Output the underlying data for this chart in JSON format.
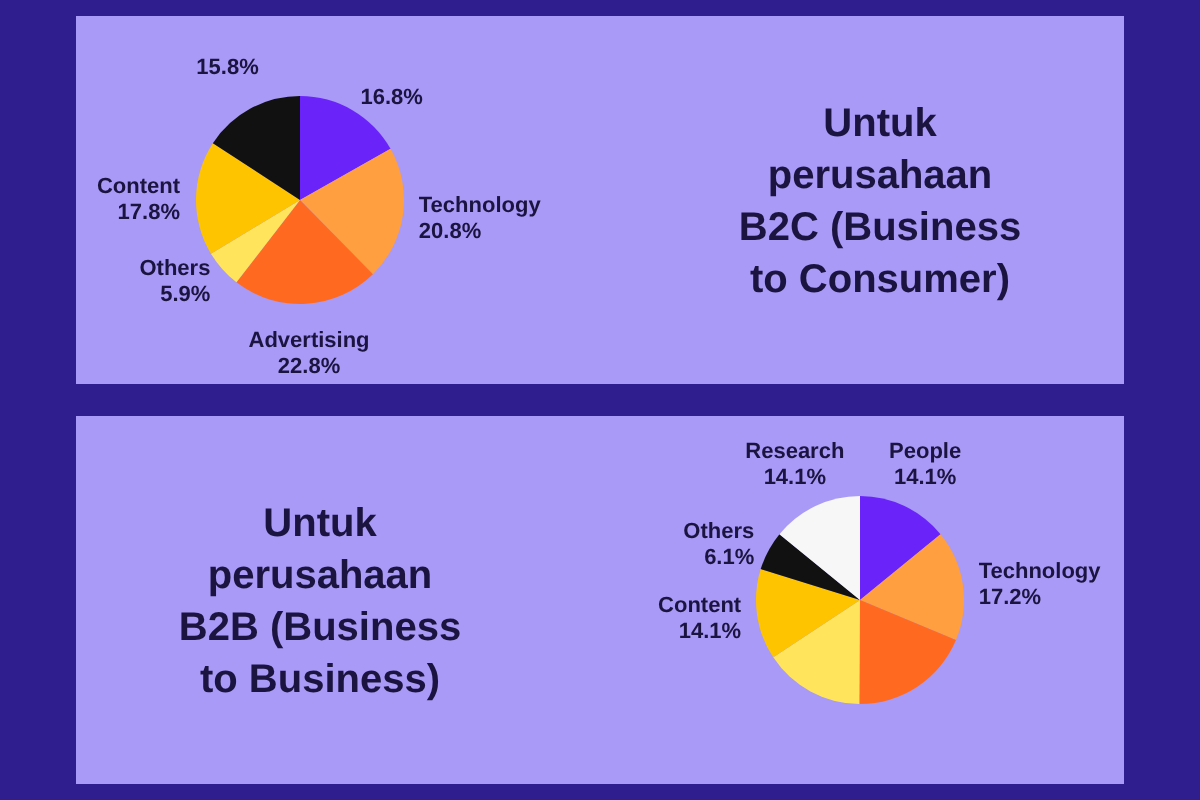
{
  "chart_data": [
    {
      "type": "pie",
      "title": "Untuk perusahaan B2C (Business to Consumer)",
      "categories": [
        null,
        "Technology",
        "Advertising",
        "Others",
        "Content",
        null
      ],
      "values": [
        16.8,
        20.8,
        22.8,
        5.9,
        17.8,
        15.8
      ],
      "value_labels": [
        "16.8%",
        "20.8%",
        "22.8%",
        "5.9%",
        "17.8%",
        "15.8%"
      ],
      "colors": [
        "#6a24fa",
        "#ff9f3f",
        "#ff6a20",
        "#ffe45c",
        "#ffc400",
        "#111111"
      ]
    },
    {
      "type": "pie",
      "title": "Untuk perusahaan B2B (Business to Business)",
      "categories": [
        "People",
        "Technology",
        null,
        null,
        "Content",
        "Others",
        "Research"
      ],
      "values": [
        14.1,
        17.2,
        18.8,
        15.6,
        14.1,
        6.1,
        14.1
      ],
      "value_labels": [
        "14.1%",
        "17.2%",
        null,
        null,
        "14.1%",
        "6.1%",
        "14.1%"
      ],
      "colors": [
        "#6a24fa",
        "#ff9f3f",
        "#ff6a20",
        "#ffe45c",
        "#ffc400",
        "#111111",
        "#f7f7f7"
      ]
    }
  ]
}
